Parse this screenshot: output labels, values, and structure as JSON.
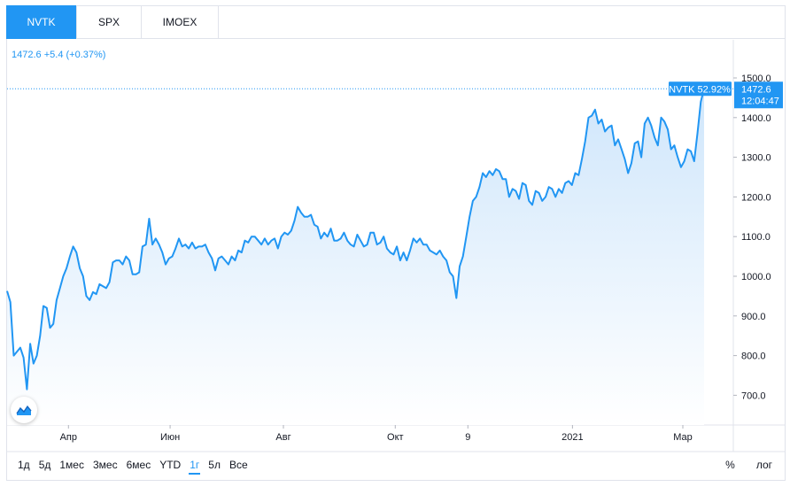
{
  "tabs": [
    {
      "label": "NVTK",
      "active": true
    },
    {
      "label": "SPX",
      "active": false
    },
    {
      "label": "IMOEX",
      "active": false
    }
  ],
  "legend": {
    "price": "1472.6",
    "change": "+5.4",
    "change_pct": "(+0.37%)"
  },
  "price_label": {
    "symbol_change": "NVTK 52.92%",
    "price": "1472.6",
    "time": "12:04:47"
  },
  "colors": {
    "accent": "#2196f3",
    "area_top": "#cfe6fb",
    "area_bottom": "#ffffff",
    "grid": "#e0e3eb"
  },
  "ranges": [
    {
      "label": "1д",
      "active": false
    },
    {
      "label": "5д",
      "active": false
    },
    {
      "label": "1мес",
      "active": false
    },
    {
      "label": "3мес",
      "active": false
    },
    {
      "label": "6мес",
      "active": false
    },
    {
      "label": "YTD",
      "active": false
    },
    {
      "label": "1г",
      "active": true
    },
    {
      "label": "5л",
      "active": false
    },
    {
      "label": "Все",
      "active": false
    }
  ],
  "scale_buttons": {
    "percent": "%",
    "log": "лог"
  },
  "chart_data": {
    "type": "area",
    "symbol": "NVTK",
    "y_ticks": [
      "1500.0",
      "1400.0",
      "1300.0",
      "1200.0",
      "1100.0",
      "1000.0",
      "900.0",
      "800.0",
      "700.0"
    ],
    "y_tick_values": [
      1500,
      1400,
      1300,
      1200,
      1100,
      1000,
      900,
      800,
      700
    ],
    "ylim": [
      650,
      1530
    ],
    "x_ticks": [
      {
        "label": "Апр",
        "t": 0.0845
      },
      {
        "label": "Июн",
        "t": 0.2245
      },
      {
        "label": "Авг",
        "t": 0.3805
      },
      {
        "label": "Окт",
        "t": 0.5345
      },
      {
        "label": "9",
        "t": 0.6345
      },
      {
        "label": "2021",
        "t": 0.7785
      },
      {
        "label": "Мар",
        "t": 0.9305
      }
    ],
    "grid": false,
    "last_value": 1472.6,
    "values": [
      963,
      935,
      800,
      810,
      820,
      795,
      715,
      830,
      780,
      800,
      850,
      925,
      920,
      870,
      880,
      940,
      970,
      1000,
      1020,
      1050,
      1075,
      1060,
      1020,
      1000,
      950,
      940,
      960,
      955,
      980,
      975,
      970,
      985,
      1035,
      1040,
      1040,
      1030,
      1050,
      1040,
      1005,
      1005,
      1010,
      1075,
      1080,
      1145,
      1080,
      1095,
      1080,
      1060,
      1030,
      1045,
      1050,
      1070,
      1095,
      1075,
      1080,
      1070,
      1085,
      1070,
      1075,
      1075,
      1080,
      1060,
      1045,
      1015,
      1045,
      1050,
      1040,
      1030,
      1050,
      1040,
      1065,
      1060,
      1090,
      1085,
      1100,
      1100,
      1090,
      1080,
      1095,
      1080,
      1090,
      1095,
      1070,
      1100,
      1110,
      1105,
      1115,
      1140,
      1175,
      1160,
      1150,
      1150,
      1155,
      1130,
      1125,
      1095,
      1110,
      1100,
      1120,
      1090,
      1090,
      1095,
      1110,
      1090,
      1080,
      1075,
      1105,
      1090,
      1075,
      1080,
      1110,
      1110,
      1080,
      1085,
      1100,
      1070,
      1060,
      1055,
      1075,
      1040,
      1060,
      1040,
      1065,
      1095,
      1085,
      1095,
      1080,
      1080,
      1065,
      1060,
      1055,
      1065,
      1050,
      1040,
      1010,
      1000,
      945,
      1025,
      1050,
      1100,
      1150,
      1190,
      1200,
      1225,
      1260,
      1250,
      1265,
      1255,
      1270,
      1265,
      1245,
      1245,
      1200,
      1220,
      1215,
      1195,
      1235,
      1230,
      1190,
      1180,
      1215,
      1210,
      1190,
      1200,
      1225,
      1220,
      1200,
      1220,
      1210,
      1235,
      1240,
      1230,
      1260,
      1255,
      1295,
      1340,
      1400,
      1405,
      1420,
      1385,
      1395,
      1365,
      1375,
      1380,
      1330,
      1345,
      1320,
      1295,
      1260,
      1285,
      1335,
      1340,
      1300,
      1385,
      1400,
      1380,
      1350,
      1330,
      1400,
      1390,
      1370,
      1320,
      1330,
      1300,
      1275,
      1290,
      1320,
      1315,
      1290,
      1360,
      1440,
      1472.6
    ]
  }
}
